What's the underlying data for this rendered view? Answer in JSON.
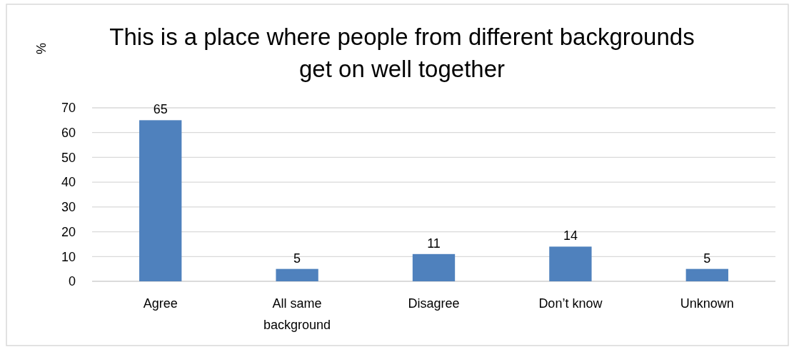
{
  "chart_data": {
    "type": "bar",
    "title": "This is a place where people from different backgrounds get on well together",
    "ylabel": "%",
    "categories": [
      "Agree",
      "All same background",
      "Disagree",
      "Don’t know",
      "Unknown"
    ],
    "values": [
      65,
      5,
      11,
      14,
      5
    ],
    "color": "#4f81bd",
    "ylim": [
      0,
      70
    ],
    "yticks": [
      0,
      10,
      20,
      30,
      40,
      50,
      60,
      70
    ],
    "grid": "y",
    "data_labels": true
  }
}
